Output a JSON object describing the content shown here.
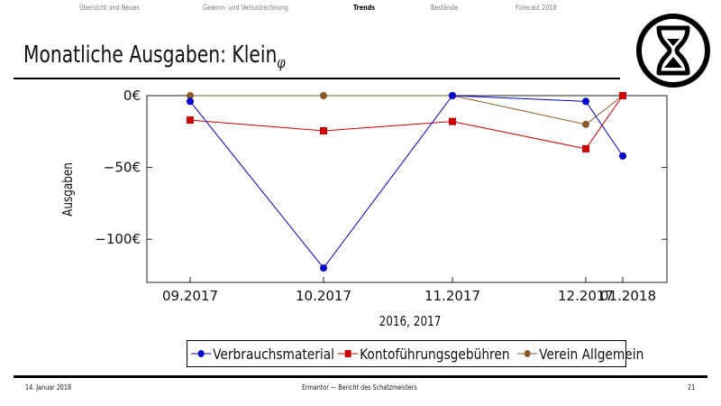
{
  "nav": {
    "items": [
      {
        "label": "Übersicht und Neues",
        "active": false
      },
      {
        "label": "Gewinn- und Verlustrechnung",
        "active": false
      },
      {
        "label": "Trends",
        "active": true
      },
      {
        "label": "Bestände",
        "active": false
      },
      {
        "label": "Forecast 2018",
        "active": false
      }
    ]
  },
  "slide": {
    "title": "Monatliche Ausgaben: Klein",
    "title_subscript": "φ",
    "logo_icon": "hourglass-circle-logo"
  },
  "chart_data": {
    "type": "line",
    "xlabel": "2016, 2017",
    "ylabel": "Ausgaben",
    "categories": [
      "09.2017",
      "10.2017",
      "11.2017",
      "12.2017",
      "01.2018"
    ],
    "y_ticks": [
      {
        "value": 0,
        "label": "0€"
      },
      {
        "value": -50,
        "label": "−50€"
      },
      {
        "value": -100,
        "label": "−100€"
      }
    ],
    "ylim": [
      -130,
      0
    ],
    "grid": false,
    "legend_position": "bottom",
    "series": [
      {
        "name": "Verbrauchsmaterial",
        "color": "#0000cc",
        "marker": "circle",
        "values": [
          -4,
          -120,
          0,
          -4,
          -42
        ]
      },
      {
        "name": "Kontoführungsgebühren",
        "color": "#cc0000",
        "marker": "square",
        "values": [
          -17,
          -24.5,
          -18,
          -37,
          0
        ]
      },
      {
        "name": "Verein Allgemein",
        "color": "#8b5a2b",
        "marker": "circle",
        "values": [
          0,
          0,
          0,
          -20,
          0
        ]
      }
    ]
  },
  "footer": {
    "date": "14. Januar 2018",
    "center": "Ermantor — Bericht des Schatzmeisters",
    "page": "21"
  }
}
